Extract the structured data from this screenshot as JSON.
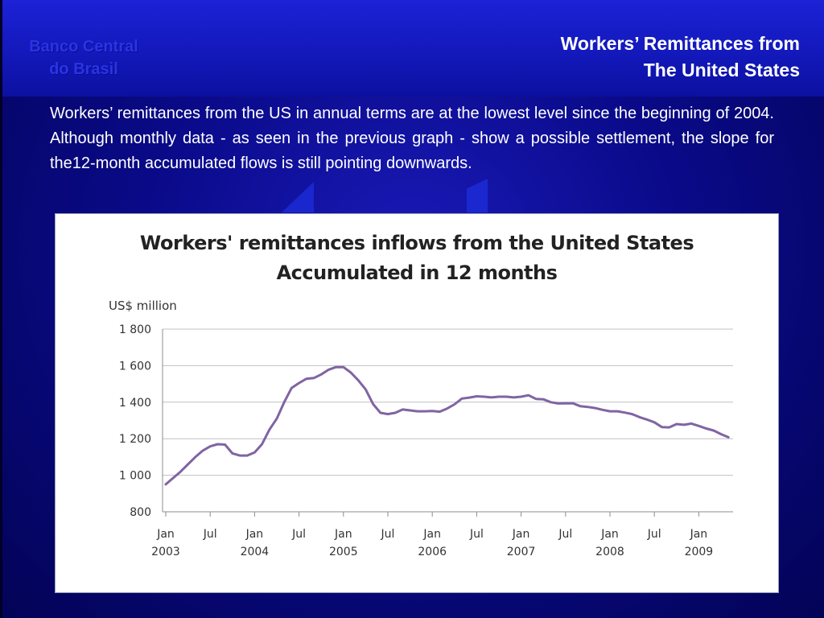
{
  "brand": {
    "line1": "Banco Central",
    "line2": "do Brasil"
  },
  "slide": {
    "title_line1": "Workers’ Remittances from",
    "title_line2": "The United States",
    "body": "Workers’ remittances from the US in annual terms are at the lowest level since the beginning of 2004. Although monthly data - as seen in the previous graph - show a possible settlement, the slope for the12-month accumulated flows is still pointing downwards."
  },
  "colors": {
    "line": "#8064A2",
    "grid": "#C0C0C0",
    "background": "#0a0a8a"
  },
  "chart_data": {
    "type": "line",
    "title_line1": "Workers' remittances inflows from the United States",
    "title_line2": "Accumulated in 12 months",
    "ylabel": "US$ million",
    "ylim": [
      800,
      1800
    ],
    "yticks": [
      800,
      1000,
      1200,
      1400,
      1600,
      1800
    ],
    "ytick_labels": [
      "800",
      "1 000",
      "1 200",
      "1 400",
      "1 600",
      "1 800"
    ],
    "xticks": [
      {
        "month": 0,
        "label1": "Jan",
        "label2": "2003"
      },
      {
        "month": 6,
        "label1": "Jul",
        "label2": ""
      },
      {
        "month": 12,
        "label1": "Jan",
        "label2": "2004"
      },
      {
        "month": 18,
        "label1": "Jul",
        "label2": ""
      },
      {
        "month": 24,
        "label1": "Jan",
        "label2": "2005"
      },
      {
        "month": 30,
        "label1": "Jul",
        "label2": ""
      },
      {
        "month": 36,
        "label1": "Jan",
        "label2": "2006"
      },
      {
        "month": 42,
        "label1": "Jul",
        "label2": ""
      },
      {
        "month": 48,
        "label1": "Jan",
        "label2": "2007"
      },
      {
        "month": 54,
        "label1": "Jul",
        "label2": ""
      },
      {
        "month": 60,
        "label1": "Jan",
        "label2": "2008"
      },
      {
        "month": 66,
        "label1": "Jul",
        "label2": ""
      },
      {
        "month": 72,
        "label1": "Jan",
        "label2": "2009"
      }
    ],
    "x_start": "Jan 2003",
    "grid": true,
    "legend": "none",
    "series": [
      {
        "values": [
          950,
          985,
          1020,
          1060,
          1100,
          1135,
          1158,
          1170,
          1168,
          1120,
          1108,
          1108,
          1125,
          1170,
          1250,
          1310,
          1400,
          1478,
          1505,
          1528,
          1532,
          1552,
          1578,
          1592,
          1592,
          1562,
          1520,
          1470,
          1390,
          1342,
          1335,
          1342,
          1360,
          1355,
          1350,
          1350,
          1352,
          1348,
          1365,
          1388,
          1420,
          1425,
          1432,
          1430,
          1426,
          1430,
          1430,
          1426,
          1430,
          1438,
          1418,
          1416,
          1400,
          1393,
          1394,
          1394,
          1378,
          1374,
          1368,
          1358,
          1350,
          1350,
          1343,
          1335,
          1318,
          1305,
          1290,
          1264,
          1262,
          1280,
          1276,
          1283,
          1270,
          1256,
          1245,
          1225,
          1208
        ]
      }
    ]
  }
}
